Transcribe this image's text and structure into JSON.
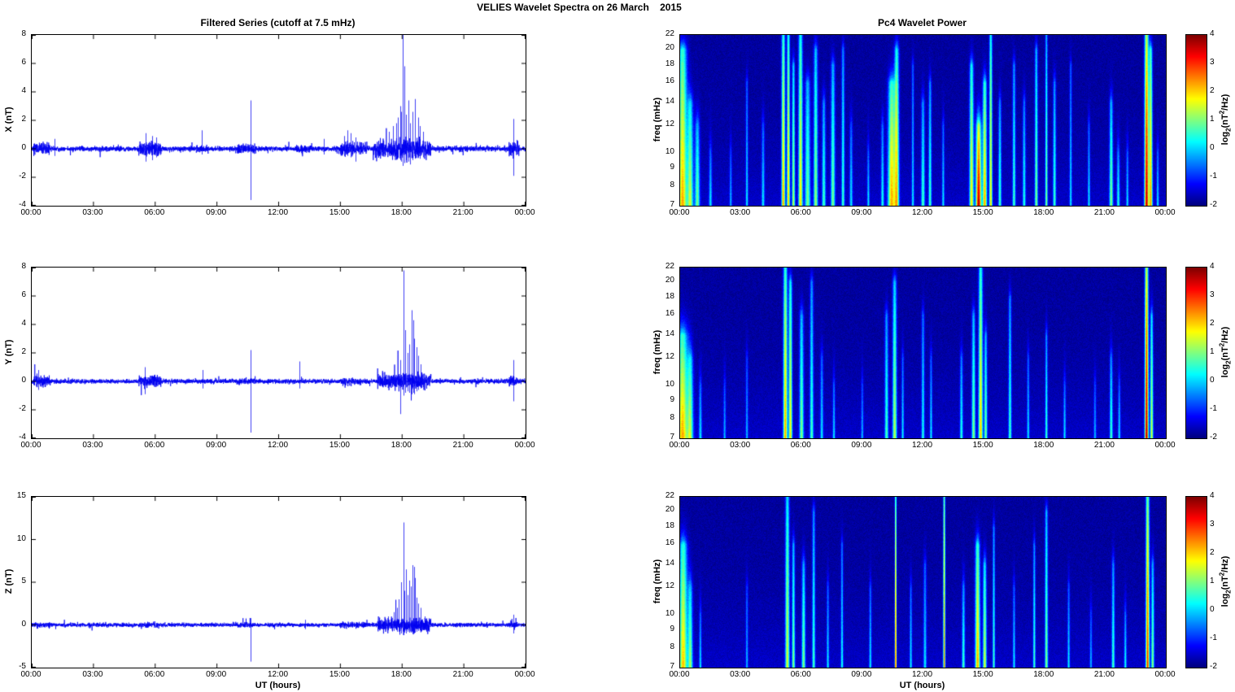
{
  "title": "VELIES Wavelet Spectra on 26 March    2015",
  "left_title": "Filtered Series (cutoff at 7.5 mHz)",
  "right_title": "Pc4 Wavelet Power",
  "xlabel": "UT (hours)",
  "x_ticks": [
    "00:00",
    "03:00",
    "06:00",
    "09:00",
    "12:00",
    "15:00",
    "18:00",
    "21:00",
    "00:00"
  ],
  "colorbar": {
    "min": -2,
    "max": 4,
    "ticks": [
      4,
      3,
      2,
      1,
      0,
      -1,
      -2
    ],
    "label": {
      "p1": "log",
      "s1": "2",
      "p2": "(nT",
      "s2": "2",
      "p3": "/Hz)"
    }
  },
  "chart_data": [
    {
      "id": "timeseries-x",
      "type": "line",
      "ylabel": "X (nT)",
      "x_range_hours": [
        0,
        24
      ],
      "ylim": [
        -4,
        8
      ],
      "yticks": [
        8,
        6,
        4,
        2,
        0,
        -2,
        -4
      ],
      "line_color": "#0000f0",
      "noise_base": 0.09,
      "seed": 7,
      "bursts": [
        [
          0.1,
          0.9,
          0.22
        ],
        [
          4.0,
          4.3,
          0.12
        ],
        [
          5.2,
          6.3,
          0.28
        ],
        [
          8.0,
          8.6,
          0.14
        ],
        [
          9.9,
          10.9,
          0.18
        ],
        [
          12.8,
          13.6,
          0.14
        ],
        [
          15.0,
          16.3,
          0.24
        ],
        [
          16.6,
          19.4,
          0.36
        ],
        [
          23.2,
          23.7,
          0.28
        ]
      ],
      "spikes": [
        [
          10.65,
          3.4,
          -3.6
        ],
        [
          8.25,
          1.3,
          -0.4
        ],
        [
          17.35,
          1.2,
          -0.5
        ],
        [
          17.55,
          1.6,
          -0.5
        ],
        [
          17.7,
          1.8,
          -0.7
        ],
        [
          17.8,
          2.2,
          -0.6
        ],
        [
          17.9,
          3.0,
          -0.8
        ],
        [
          17.95,
          2.6,
          -0.9
        ],
        [
          18.02,
          8.0,
          -1.2
        ],
        [
          18.12,
          5.8,
          -1.0
        ],
        [
          18.2,
          2.4,
          -0.8
        ],
        [
          18.3,
          3.4,
          -0.9
        ],
        [
          18.4,
          1.8,
          -1.1
        ],
        [
          18.5,
          2.6,
          -0.8
        ],
        [
          18.62,
          3.5,
          -0.7
        ],
        [
          18.78,
          2.2,
          -0.6
        ],
        [
          18.85,
          1.6,
          -0.7
        ],
        [
          19.0,
          1.2,
          -0.6
        ],
        [
          15.2,
          0.9,
          -0.5
        ],
        [
          15.35,
          1.3,
          -0.5
        ],
        [
          15.5,
          1.1,
          -0.6
        ],
        [
          15.75,
          0.8,
          -0.9
        ],
        [
          5.55,
          1.1,
          -0.9
        ],
        [
          5.85,
          0.9,
          -0.8
        ],
        [
          6.05,
          0.8,
          -0.6
        ],
        [
          1.1,
          0.7,
          -0.5
        ],
        [
          14.2,
          0.7,
          -0.4
        ],
        [
          23.42,
          2.1,
          -1.9
        ]
      ]
    },
    {
      "id": "timeseries-y",
      "type": "line",
      "ylabel": "Y (nT)",
      "x_range_hours": [
        0,
        24
      ],
      "ylim": [
        -4,
        8
      ],
      "yticks": [
        8,
        6,
        4,
        2,
        0,
        -2,
        -4
      ],
      "line_color": "#0000f0",
      "noise_base": 0.08,
      "seed": 13,
      "bursts": [
        [
          0.1,
          0.9,
          0.2
        ],
        [
          5.2,
          6.3,
          0.22
        ],
        [
          9.9,
          10.9,
          0.12
        ],
        [
          15.0,
          16.0,
          0.15
        ],
        [
          16.8,
          19.4,
          0.3
        ],
        [
          23.2,
          23.6,
          0.2
        ]
      ],
      "spikes": [
        [
          10.65,
          2.2,
          -3.6
        ],
        [
          17.9,
          1.5,
          -2.3
        ],
        [
          18.05,
          7.8,
          -1.0
        ],
        [
          18.15,
          3.6,
          -0.8
        ],
        [
          18.25,
          2.0,
          -0.7
        ],
        [
          18.35,
          2.6,
          -0.8
        ],
        [
          18.45,
          5.0,
          -0.9
        ],
        [
          18.55,
          4.3,
          -0.8
        ],
        [
          18.6,
          3.0,
          -0.9
        ],
        [
          18.7,
          2.4,
          -0.7
        ],
        [
          18.8,
          1.8,
          -0.6
        ],
        [
          18.9,
          1.2,
          -0.5
        ],
        [
          13.0,
          1.4,
          -0.5
        ],
        [
          5.5,
          1.0,
          -0.9
        ],
        [
          8.3,
          0.8,
          -0.5
        ],
        [
          0.3,
          0.8,
          -0.6
        ],
        [
          23.4,
          1.5,
          -1.4
        ]
      ]
    },
    {
      "id": "timeseries-z",
      "type": "line",
      "ylabel": "Z (nT)",
      "x_range_hours": [
        0,
        24
      ],
      "ylim": [
        -5,
        15
      ],
      "yticks": [
        15,
        10,
        5,
        0,
        -5
      ],
      "line_color": "#0000f0",
      "noise_base": 0.12,
      "seed": 21,
      "bursts": [
        [
          0.1,
          0.9,
          0.18
        ],
        [
          5.2,
          6.2,
          0.18
        ],
        [
          9.9,
          10.9,
          0.15
        ],
        [
          15.0,
          16.2,
          0.18
        ],
        [
          16.8,
          19.4,
          0.45
        ],
        [
          23.2,
          23.6,
          0.2
        ]
      ],
      "spikes": [
        [
          10.65,
          0.8,
          -4.3
        ],
        [
          17.3,
          1.0,
          -0.5
        ],
        [
          17.6,
          1.5,
          -0.7
        ],
        [
          17.75,
          2.0,
          -0.8
        ],
        [
          17.85,
          3.0,
          -0.8
        ],
        [
          17.95,
          5.0,
          -1.0
        ],
        [
          18.05,
          12.0,
          -1.2
        ],
        [
          18.12,
          4.0,
          -0.9
        ],
        [
          18.2,
          6.5,
          -1.0
        ],
        [
          18.28,
          3.5,
          -0.8
        ],
        [
          18.35,
          5.2,
          -0.9
        ],
        [
          18.44,
          4.5,
          -0.9
        ],
        [
          18.5,
          7.0,
          -1.0
        ],
        [
          18.58,
          6.8,
          -0.9
        ],
        [
          18.64,
          5.5,
          -0.9
        ],
        [
          18.72,
          3.2,
          -0.8
        ],
        [
          18.8,
          2.5,
          -0.7
        ],
        [
          18.9,
          2.0,
          -0.7
        ],
        [
          19.1,
          1.0,
          -0.5
        ],
        [
          13.3,
          0.6,
          -0.5
        ],
        [
          23.4,
          1.2,
          -1.0
        ]
      ]
    },
    {
      "id": "wavelet-x",
      "type": "heatmap",
      "ylabel": "freq (mHz)",
      "flim": [
        7,
        22
      ],
      "fticks": [
        22,
        20,
        18,
        16,
        14,
        12,
        10,
        9,
        8,
        7
      ],
      "clim": [
        -2,
        4
      ],
      "base": -1.82,
      "seed": 11,
      "events": [
        [
          0.12,
          0.15,
          3.9,
          20
        ],
        [
          0.5,
          0.1,
          3.0,
          14
        ],
        [
          0.85,
          0.08,
          2.6,
          12
        ],
        [
          1.5,
          0.05,
          1.8,
          10
        ],
        [
          2.5,
          0.04,
          1.5,
          10
        ],
        [
          3.3,
          0.04,
          1.8,
          16
        ],
        [
          4.1,
          0.05,
          1.8,
          12
        ],
        [
          5.1,
          0.06,
          3.9,
          22
        ],
        [
          5.35,
          0.05,
          3.8,
          22
        ],
        [
          5.6,
          0.05,
          3.0,
          18
        ],
        [
          5.95,
          0.07,
          3.6,
          22
        ],
        [
          6.3,
          0.09,
          2.6,
          16
        ],
        [
          6.7,
          0.07,
          2.8,
          20
        ],
        [
          7.1,
          0.06,
          2.3,
          14
        ],
        [
          7.55,
          0.07,
          2.6,
          18
        ],
        [
          8.05,
          0.05,
          2.3,
          20
        ],
        [
          8.45,
          0.05,
          1.8,
          12
        ],
        [
          9.3,
          0.04,
          1.8,
          10
        ],
        [
          10.0,
          0.05,
          2.0,
          12
        ],
        [
          10.45,
          0.12,
          3.9,
          16
        ],
        [
          10.7,
          0.08,
          3.5,
          20
        ],
        [
          11.5,
          0.04,
          1.8,
          18
        ],
        [
          12.0,
          0.06,
          2.3,
          14
        ],
        [
          12.35,
          0.05,
          2.3,
          16
        ],
        [
          13.0,
          0.04,
          1.8,
          12
        ],
        [
          14.4,
          0.07,
          3.5,
          18
        ],
        [
          14.75,
          0.09,
          5.4,
          12
        ],
        [
          15.05,
          0.07,
          3.9,
          16
        ],
        [
          15.35,
          0.05,
          3.6,
          22
        ],
        [
          15.8,
          0.05,
          2.3,
          14
        ],
        [
          16.5,
          0.05,
          2.3,
          18
        ],
        [
          17.0,
          0.05,
          2.1,
          14
        ],
        [
          17.6,
          0.05,
          2.7,
          20
        ],
        [
          18.1,
          0.04,
          2.7,
          22
        ],
        [
          18.5,
          0.05,
          2.3,
          16
        ],
        [
          19.3,
          0.04,
          1.8,
          18
        ],
        [
          20.2,
          0.04,
          1.8,
          12
        ],
        [
          21.3,
          0.06,
          2.7,
          14
        ],
        [
          21.65,
          0.05,
          2.1,
          10
        ],
        [
          22.1,
          0.04,
          1.8,
          10
        ],
        [
          23.05,
          0.07,
          5.3,
          22
        ],
        [
          23.25,
          0.06,
          3.9,
          20
        ],
        [
          23.6,
          0.04,
          1.8,
          10
        ]
      ]
    },
    {
      "id": "wavelet-y",
      "type": "heatmap",
      "ylabel": "freq (mHz)",
      "flim": [
        7,
        22
      ],
      "fticks": [
        22,
        20,
        18,
        16,
        14,
        12,
        10,
        9,
        8,
        7
      ],
      "clim": [
        -2,
        4
      ],
      "base": -1.82,
      "seed": 17,
      "events": [
        [
          0.12,
          0.18,
          3.9,
          14
        ],
        [
          0.5,
          0.1,
          2.8,
          12
        ],
        [
          1.0,
          0.05,
          1.8,
          10
        ],
        [
          2.2,
          0.04,
          1.5,
          10
        ],
        [
          3.3,
          0.04,
          1.5,
          12
        ],
        [
          5.2,
          0.07,
          3.9,
          22
        ],
        [
          5.45,
          0.06,
          3.5,
          20
        ],
        [
          6.0,
          0.07,
          2.7,
          16
        ],
        [
          6.5,
          0.06,
          2.3,
          20
        ],
        [
          7.0,
          0.05,
          1.8,
          12
        ],
        [
          7.6,
          0.04,
          1.8,
          10
        ],
        [
          9.0,
          0.04,
          1.5,
          10
        ],
        [
          10.2,
          0.06,
          2.3,
          16
        ],
        [
          10.6,
          0.07,
          3.0,
          20
        ],
        [
          11.0,
          0.04,
          1.8,
          12
        ],
        [
          12.0,
          0.05,
          2.0,
          16
        ],
        [
          12.4,
          0.04,
          1.8,
          12
        ],
        [
          13.9,
          0.05,
          2.1,
          12
        ],
        [
          14.5,
          0.06,
          2.7,
          16
        ],
        [
          14.85,
          0.07,
          3.7,
          22
        ],
        [
          15.1,
          0.05,
          2.7,
          14
        ],
        [
          16.3,
          0.05,
          2.3,
          18
        ],
        [
          17.2,
          0.04,
          1.8,
          12
        ],
        [
          18.1,
          0.04,
          2.3,
          14
        ],
        [
          19.0,
          0.04,
          1.8,
          10
        ],
        [
          20.5,
          0.04,
          1.5,
          10
        ],
        [
          21.3,
          0.05,
          2.3,
          12
        ],
        [
          21.7,
          0.04,
          1.8,
          10
        ],
        [
          23.05,
          0.06,
          5.4,
          22
        ],
        [
          23.3,
          0.05,
          3.2,
          16
        ]
      ]
    },
    {
      "id": "wavelet-z",
      "type": "heatmap",
      "ylabel": "freq (mHz)",
      "flim": [
        7,
        22
      ],
      "fticks": [
        22,
        20,
        18,
        16,
        14,
        12,
        10,
        9,
        8,
        7
      ],
      "clim": [
        -2,
        4
      ],
      "base": -1.82,
      "seed": 29,
      "events": [
        [
          0.15,
          0.14,
          3.7,
          16
        ],
        [
          0.5,
          0.08,
          2.7,
          12
        ],
        [
          1.0,
          0.04,
          1.8,
          10
        ],
        [
          3.3,
          0.04,
          1.5,
          12
        ],
        [
          5.3,
          0.07,
          3.2,
          22
        ],
        [
          5.6,
          0.05,
          2.7,
          16
        ],
        [
          6.1,
          0.06,
          2.7,
          14
        ],
        [
          6.6,
          0.05,
          2.3,
          20
        ],
        [
          7.3,
          0.04,
          1.8,
          12
        ],
        [
          8.0,
          0.04,
          2.0,
          16
        ],
        [
          9.4,
          0.04,
          1.8,
          12
        ],
        [
          10.65,
          0.03,
          4.6,
          22
        ],
        [
          11.4,
          0.04,
          1.8,
          12
        ],
        [
          12.1,
          0.05,
          1.8,
          14
        ],
        [
          13.05,
          0.035,
          4.3,
          22
        ],
        [
          14.0,
          0.05,
          2.3,
          12
        ],
        [
          14.7,
          0.08,
          3.9,
          16
        ],
        [
          15.05,
          0.06,
          3.2,
          14
        ],
        [
          15.5,
          0.04,
          2.3,
          18
        ],
        [
          16.5,
          0.04,
          1.8,
          12
        ],
        [
          17.5,
          0.04,
          2.3,
          16
        ],
        [
          18.1,
          0.05,
          2.7,
          20
        ],
        [
          19.2,
          0.04,
          1.8,
          12
        ],
        [
          20.3,
          0.04,
          1.5,
          10
        ],
        [
          21.4,
          0.05,
          2.3,
          14
        ],
        [
          22.0,
          0.04,
          2.0,
          10
        ],
        [
          23.1,
          0.06,
          4.6,
          22
        ],
        [
          23.35,
          0.05,
          2.7,
          14
        ]
      ]
    }
  ]
}
